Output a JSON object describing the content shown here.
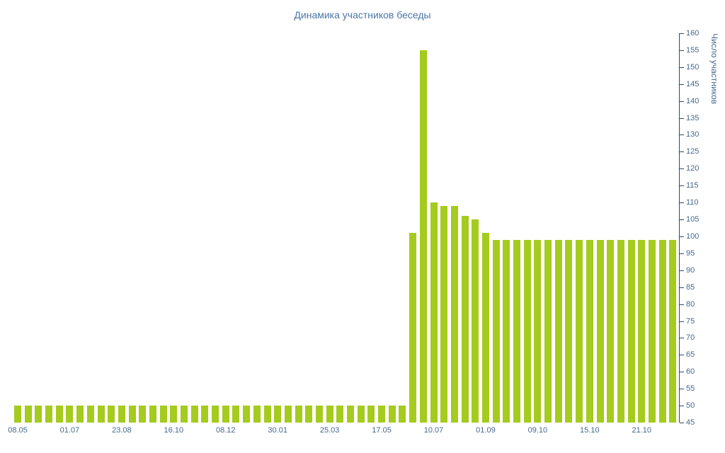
{
  "chart_data": {
    "type": "bar",
    "title": "Динамика участников беседы",
    "ylabel": "Число участников",
    "xlabel": "",
    "ylim": [
      45,
      160
    ],
    "ytick_step": 5,
    "legend": "none",
    "grid": "horizontal-stripes",
    "x_labels": [
      "08.05",
      "01.07",
      "23.08",
      "16.10",
      "08.12",
      "30.01",
      "25.03",
      "17.05",
      "10.07",
      "01.09",
      "09.10",
      "15.10",
      "21.10"
    ],
    "x_label_step": 5,
    "values": [
      50,
      50,
      50,
      50,
      50,
      50,
      50,
      50,
      50,
      50,
      50,
      50,
      50,
      50,
      50,
      50,
      50,
      50,
      50,
      50,
      50,
      50,
      50,
      50,
      50,
      50,
      50,
      50,
      50,
      50,
      50,
      50,
      50,
      50,
      50,
      50,
      50,
      50,
      101,
      155,
      110,
      109,
      109,
      106,
      105,
      101,
      99,
      99,
      99,
      99,
      99,
      99,
      99,
      99,
      99,
      99,
      99,
      99,
      99,
      99,
      99,
      99,
      99,
      99
    ],
    "colors": {
      "bar": "#a4cb1e",
      "stripe": "#f5f5f5",
      "axis_line": "#274a6d",
      "tick_label": "#45688e",
      "title": "#4a76a8",
      "background": "#ffffff"
    }
  }
}
